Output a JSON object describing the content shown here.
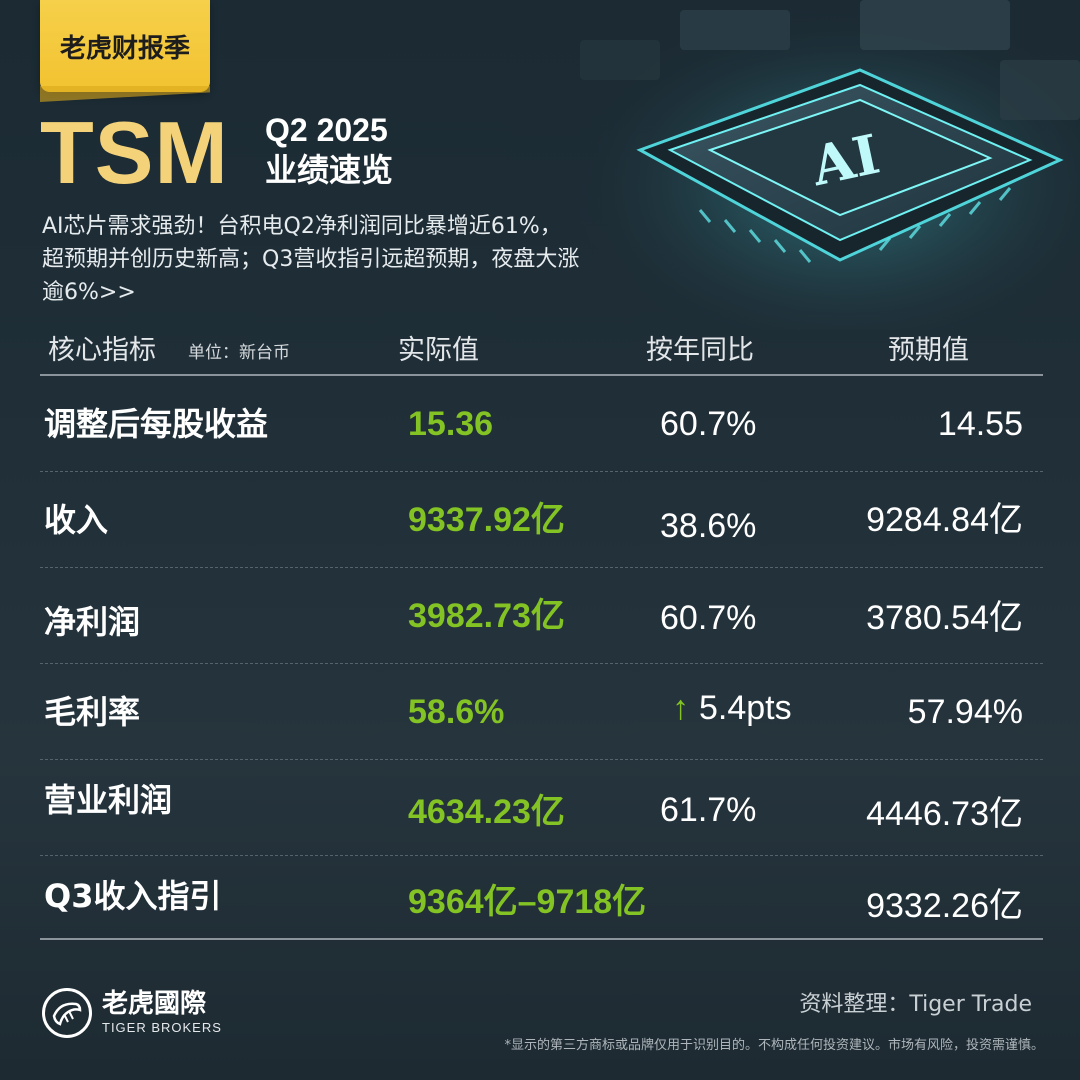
{
  "badge": "老虎财报季",
  "ticker": "TSM",
  "quarter": "Q2 2025",
  "subtitle": "业绩速览",
  "headline": "AI芯片需求强劲！台积电Q2净利润同比暴增近61%，超预期并创历史新高；Q3营收指引远超预期，夜盘大涨逾6%>>",
  "art": {
    "chip_label": "AI"
  },
  "table": {
    "headers": {
      "metric": "核心指标",
      "unit": "单位：新台币",
      "actual": "实际值",
      "yoy": "按年同比",
      "expected": "预期值"
    },
    "rows": [
      {
        "metric": "调整后每股收益",
        "actual": "15.36",
        "yoy": "60.7%",
        "expected": "14.55"
      },
      {
        "metric": "收入",
        "actual": "9337.92亿",
        "yoy": "38.6%",
        "expected": "9284.84亿"
      },
      {
        "metric": "净利润",
        "actual": "3982.73亿",
        "yoy": "60.7%",
        "expected": "3780.54亿"
      },
      {
        "metric": "毛利率",
        "actual": "58.6%",
        "yoy_arrow": "↑",
        "yoy": "5.4pts",
        "expected": "57.94%"
      },
      {
        "metric": "营业利润",
        "actual": "4634.23亿",
        "yoy": "61.7%",
        "expected": "4446.73亿"
      },
      {
        "metric": "Q3收入指引",
        "actual": "9364亿–9718亿",
        "yoy": "",
        "expected": "9332.26亿"
      }
    ]
  },
  "footer": {
    "logo_cn": "老虎國際",
    "logo_en": "TIGER BROKERS",
    "logo_icon": "tiger-logo-icon",
    "source": "资料整理：Tiger Trade",
    "disclaimer": "*显示的第三方商标或品牌仅用于识别目的。不构成任何投资建议。市场有风险，投资需谨慎。"
  },
  "colors": {
    "accent_green": "#84c324",
    "title_gold": "#f3d27a",
    "badge_yellow": "#f2c230",
    "chip_cyan": "#5fe3e6"
  }
}
